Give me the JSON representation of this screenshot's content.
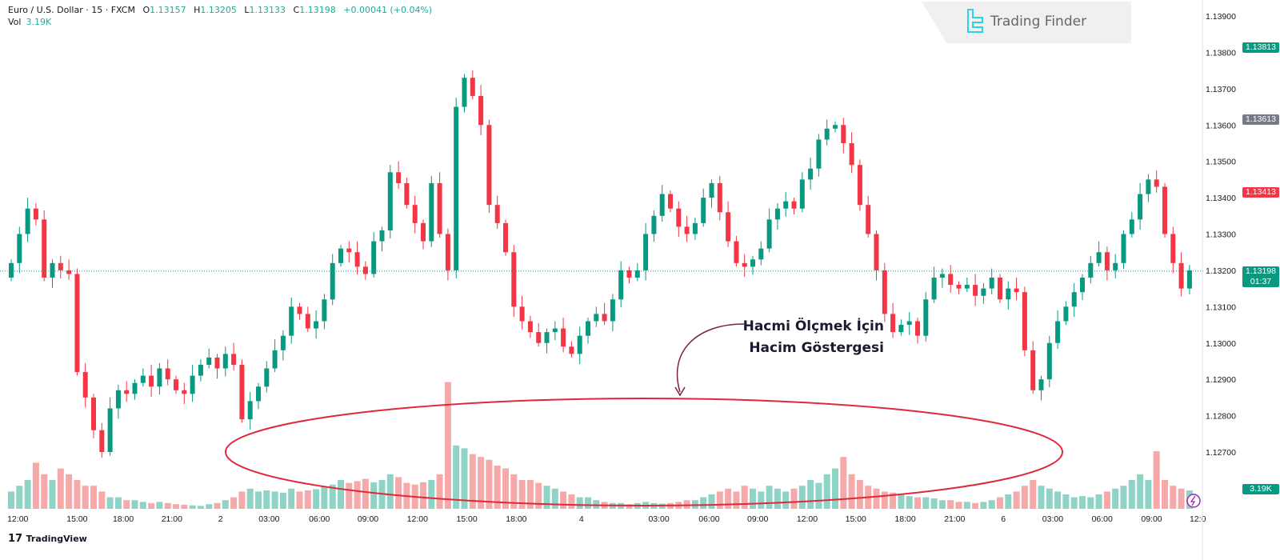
{
  "header": {
    "symbol": "Euro / U.S. Dollar · 15 · FXCM",
    "o_label": "O",
    "o": "1.13157",
    "h_label": "H",
    "h": "1.13205",
    "l_label": "L",
    "l": "1.13133",
    "c_label": "C",
    "c": "1.13198",
    "change": "+0.00041 (+0.04%)",
    "vol_label": "Vol",
    "vol": "3.19K"
  },
  "watermark": "Trading Finder",
  "annotation": {
    "line1": "Hacmi Ölçmek İçin",
    "line2": "Hacim Göstergesi"
  },
  "footer_logo": "TradingView",
  "price_tags": [
    {
      "value": "1.13813",
      "color": "#089981",
      "price": 1.13813
    },
    {
      "value": "1.13613",
      "color": "#787b86",
      "price": 1.13613
    },
    {
      "value": "1.13413",
      "color": "#f23645",
      "price": 1.13413
    }
  ],
  "current": {
    "price_label": "1.13198",
    "countdown": "01:37",
    "price": 1.13198,
    "color": "#089981"
  },
  "volume_tag": "3.19K",
  "colors": {
    "up": "#089981",
    "down": "#f23645",
    "up_vol": "#8fd3c6",
    "down_vol": "#f6a9a9",
    "ellipse": "#e0283a",
    "arrow": "#7a2140"
  },
  "chart_data": {
    "type": "candlestick",
    "title": "Euro / U.S. Dollar · 15 · FXCM",
    "ylim": [
      1.1263,
      1.1392
    ],
    "y_ticks": [
      "1.13900",
      "1.13800",
      "1.13700",
      "1.13600",
      "1.13500",
      "1.13400",
      "1.13300",
      "1.13200",
      "1.13100",
      "1.13000",
      "1.12900",
      "1.12800",
      "1.12700"
    ],
    "y_tick_values": [
      1.139,
      1.138,
      1.137,
      1.136,
      1.135,
      1.134,
      1.133,
      1.132,
      1.131,
      1.13,
      1.129,
      1.128,
      1.127
    ],
    "x_ticks": [
      {
        "label": "12:00",
        "i": 0.8
      },
      {
        "label": "15:00",
        "i": 8
      },
      {
        "label": "18:00",
        "i": 13.6
      },
      {
        "label": "21:00",
        "i": 19.5
      },
      {
        "label": "2",
        "i": 25.4
      },
      {
        "label": "03:00",
        "i": 31.3
      },
      {
        "label": "06:00",
        "i": 37.4
      },
      {
        "label": "09:00",
        "i": 43.3
      },
      {
        "label": "12:00",
        "i": 49.3
      },
      {
        "label": "15:00",
        "i": 55.3
      },
      {
        "label": "18:00",
        "i": 61.3
      },
      {
        "label": "4",
        "i": 69.2
      },
      {
        "label": "03:00",
        "i": 78.6
      },
      {
        "label": "06:00",
        "i": 84.7
      },
      {
        "label": "09:00",
        "i": 90.6
      },
      {
        "label": "12:00",
        "i": 96.6
      },
      {
        "label": "15:00",
        "i": 102.5
      },
      {
        "label": "18:00",
        "i": 108.5
      },
      {
        "label": "21:00",
        "i": 114.5
      },
      {
        "label": "6",
        "i": 120.4
      },
      {
        "label": "03:00",
        "i": 126.4
      },
      {
        "label": "06:00",
        "i": 132.4
      },
      {
        "label": "09:00",
        "i": 138.4
      },
      {
        "label": "12:0",
        "i": 144
      }
    ],
    "close": [
      1.1322,
      1.133,
      1.1337,
      1.1334,
      1.1318,
      1.1322,
      1.132,
      1.1319,
      1.1292,
      1.1285,
      1.1276,
      1.127,
      1.1282,
      1.1287,
      1.1286,
      1.1289,
      1.1291,
      1.1288,
      1.1293,
      1.129,
      1.1287,
      1.1286,
      1.1291,
      1.1294,
      1.1296,
      1.1293,
      1.1297,
      1.1294,
      1.1279,
      1.1284,
      1.1288,
      1.1293,
      1.1298,
      1.1302,
      1.131,
      1.1308,
      1.1304,
      1.1306,
      1.1312,
      1.1322,
      1.1326,
      1.1325,
      1.1321,
      1.1319,
      1.1328,
      1.1331,
      1.1347,
      1.1344,
      1.1338,
      1.1333,
      1.1328,
      1.1344,
      1.133,
      1.132,
      1.1365,
      1.1373,
      1.1368,
      1.136,
      1.1338,
      1.1333,
      1.1325,
      1.131,
      1.1306,
      1.1303,
      1.13,
      1.1303,
      1.1304,
      1.1299,
      1.1297,
      1.1302,
      1.1306,
      1.1308,
      1.1306,
      1.1312,
      1.132,
      1.1318,
      1.132,
      1.133,
      1.1335,
      1.1341,
      1.1337,
      1.1332,
      1.133,
      1.1333,
      1.134,
      1.1344,
      1.1336,
      1.1328,
      1.1322,
      1.1321,
      1.1323,
      1.1326,
      1.1334,
      1.1337,
      1.1339,
      1.1337,
      1.1345,
      1.1348,
      1.1356,
      1.1359,
      1.136,
      1.1355,
      1.1349,
      1.1338,
      1.133,
      1.132,
      1.1308,
      1.1303,
      1.1305,
      1.1306,
      1.1302,
      1.1312,
      1.1318,
      1.1319,
      1.1316,
      1.1315,
      1.1316,
      1.1313,
      1.1315,
      1.1318,
      1.1312,
      1.1315,
      1.1314,
      1.1298,
      1.1287,
      1.129,
      1.13,
      1.1306,
      1.131,
      1.1314,
      1.1318,
      1.1322,
      1.1325,
      1.132,
      1.1322,
      1.133,
      1.1334,
      1.1341,
      1.1345,
      1.1343,
      1.133,
      1.1322,
      1.1315,
      1.132
    ],
    "volume_k": [
      3,
      4,
      5,
      8,
      6,
      5,
      7,
      6,
      5,
      4,
      4,
      3,
      2,
      2,
      1.5,
      1.5,
      1.2,
      1,
      1.2,
      1,
      0.8,
      0.7,
      0.6,
      0.5,
      0.8,
      1,
      1.5,
      2,
      3,
      3.5,
      3,
      3.2,
      3,
      2.8,
      3.5,
      3,
      3.2,
      3.4,
      3.8,
      4.2,
      5,
      4.5,
      4.8,
      5.2,
      4.6,
      5,
      6,
      5.5,
      4.5,
      4.2,
      4.6,
      5,
      6,
      22,
      11,
      10.5,
      9.5,
      9,
      8.5,
      7.5,
      7,
      6,
      5,
      5,
      4.5,
      4,
      3.5,
      3,
      2.5,
      2,
      2,
      1.5,
      1.2,
      1,
      1,
      0.8,
      1,
      1.2,
      1,
      0.9,
      1,
      1.2,
      1.5,
      1.5,
      2,
      2.5,
      3,
      3.5,
      3,
      4,
      3.5,
      3,
      4,
      3.5,
      3,
      3.5,
      4,
      5,
      4.5,
      6,
      7,
      9,
      6,
      5,
      4,
      3.5,
      3,
      2.8,
      2.5,
      2.2,
      2,
      2,
      1.8,
      1.5,
      1.5,
      1.2,
      1.2,
      1,
      1.2,
      1.5,
      2,
      2.5,
      3,
      4,
      5,
      4,
      3.5,
      3,
      2.5,
      2,
      2.2,
      2,
      2.5,
      3,
      3.5,
      4,
      5,
      6,
      5,
      10,
      5,
      4,
      3.5,
      3.19
    ]
  }
}
